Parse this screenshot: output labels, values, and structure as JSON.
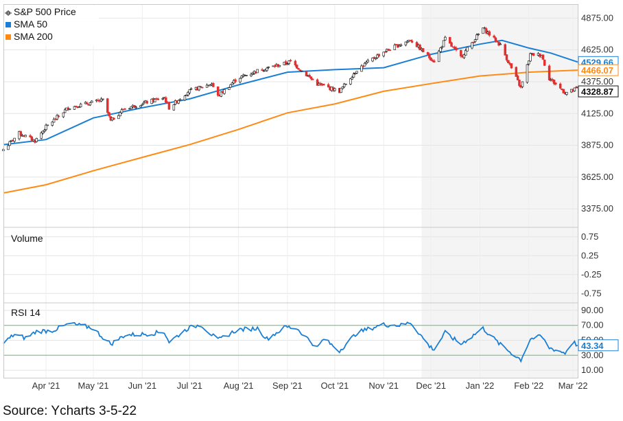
{
  "source_note": "Source: Ycharts 3-5-22",
  "colors": {
    "price_up": "#222222",
    "price_down": "#e03030",
    "sma50": "#1a7fd4",
    "sma200": "#ff8a14",
    "rsi": "#1a7fd4",
    "grid": "#e4e4e4",
    "threshold": "#6cbf6c"
  },
  "chart_data": [
    {
      "type": "candlestick",
      "panel": "price",
      "legend": [
        {
          "name": "S&P 500 Price",
          "icon": "candlestick-icon"
        },
        {
          "name": "SMA 50",
          "color": "#1a7fd4"
        },
        {
          "name": "SMA 200",
          "color": "#ff8a14"
        }
      ],
      "ylim": [
        3230,
        4985
      ],
      "yticks": [
        "4875.00",
        "4625.00",
        "4375.00",
        "4125.00",
        "3875.00",
        "3625.00",
        "3375.00"
      ],
      "xticks": [
        "Apr '21",
        "May '21",
        "Jun '21",
        "Jul '21",
        "Aug '21",
        "Sep '21",
        "Oct '21",
        "Nov '21",
        "Dec '21",
        "Jan '22",
        "Feb '22",
        "Mar '22"
      ],
      "x_range": [
        "2021-03-05",
        "2022-03-04"
      ],
      "last_values": {
        "sma50": "4529.66",
        "sma200": "4466.07",
        "price": "4328.87"
      },
      "price_anchors": [
        [
          "2021-03-05",
          3842
        ],
        [
          "2021-03-15",
          3970
        ],
        [
          "2021-03-25",
          3910
        ],
        [
          "2021-04-01",
          4020
        ],
        [
          "2021-04-15",
          4170
        ],
        [
          "2021-05-07",
          4230
        ],
        [
          "2021-05-12",
          4065
        ],
        [
          "2021-05-20",
          4160
        ],
        [
          "2021-06-01",
          4205
        ],
        [
          "2021-06-15",
          4250
        ],
        [
          "2021-06-18",
          4170
        ],
        [
          "2021-06-30",
          4297
        ],
        [
          "2021-07-15",
          4360
        ],
        [
          "2021-07-19",
          4260
        ],
        [
          "2021-07-31",
          4400
        ],
        [
          "2021-08-15",
          4470
        ],
        [
          "2021-08-31",
          4520
        ],
        [
          "2021-09-03",
          4535
        ],
        [
          "2021-09-20",
          4357
        ],
        [
          "2021-10-04",
          4300
        ],
        [
          "2021-10-15",
          4470
        ],
        [
          "2021-10-31",
          4605
        ],
        [
          "2021-11-18",
          4705
        ],
        [
          "2021-11-30",
          4567
        ],
        [
          "2021-12-03",
          4538
        ],
        [
          "2021-12-10",
          4712
        ],
        [
          "2021-12-20",
          4568
        ],
        [
          "2022-01-03",
          4796
        ],
        [
          "2022-01-14",
          4662
        ],
        [
          "2022-01-27",
          4326
        ],
        [
          "2022-02-02",
          4589
        ],
        [
          "2022-02-09",
          4587
        ],
        [
          "2022-02-14",
          4402
        ],
        [
          "2022-02-24",
          4288
        ],
        [
          "2022-03-01",
          4306
        ],
        [
          "2022-03-04",
          4329
        ]
      ],
      "series": [
        {
          "name": "SMA 50",
          "points": [
            [
              "2021-03-05",
              3880
            ],
            [
              "2021-04-01",
              3920
            ],
            [
              "2021-05-01",
              4090
            ],
            [
              "2021-06-01",
              4170
            ],
            [
              "2021-07-01",
              4240
            ],
            [
              "2021-08-01",
              4350
            ],
            [
              "2021-09-01",
              4450
            ],
            [
              "2021-10-01",
              4470
            ],
            [
              "2021-11-01",
              4485
            ],
            [
              "2021-12-01",
              4590
            ],
            [
              "2022-01-01",
              4670
            ],
            [
              "2022-01-15",
              4700
            ],
            [
              "2022-02-01",
              4640
            ],
            [
              "2022-02-15",
              4600
            ],
            [
              "2022-03-04",
              4530
            ]
          ]
        },
        {
          "name": "SMA 200",
          "points": [
            [
              "2021-03-05",
              3500
            ],
            [
              "2021-04-01",
              3565
            ],
            [
              "2021-05-01",
              3675
            ],
            [
              "2021-06-01",
              3780
            ],
            [
              "2021-07-01",
              3880
            ],
            [
              "2021-08-01",
              4000
            ],
            [
              "2021-09-01",
              4130
            ],
            [
              "2021-10-01",
              4200
            ],
            [
              "2021-11-01",
              4300
            ],
            [
              "2021-12-01",
              4360
            ],
            [
              "2022-01-01",
              4420
            ],
            [
              "2022-02-01",
              4450
            ],
            [
              "2022-03-04",
              4466
            ]
          ]
        }
      ]
    },
    {
      "type": "line",
      "panel": "volume",
      "title": "Volume",
      "ylim": [
        -1,
        1
      ],
      "yticks": [
        "0.75",
        "0.25",
        "-0.25",
        "-0.75"
      ],
      "series": []
    },
    {
      "type": "line",
      "panel": "rsi",
      "title": "RSI 14",
      "ylim": [
        0,
        100
      ],
      "yticks": [
        "90.00",
        "70.00",
        "50.00",
        "30.00",
        "10.00"
      ],
      "thresholds": [
        70,
        30
      ],
      "last_value": "43.34",
      "series": [
        {
          "name": "RSI 14",
          "points": [
            [
              "2021-03-05",
              46
            ],
            [
              "2021-03-12",
              58
            ],
            [
              "2021-03-19",
              53
            ],
            [
              "2021-03-26",
              62
            ],
            [
              "2021-04-05",
              63
            ],
            [
              "2021-04-16",
              72
            ],
            [
              "2021-04-30",
              67
            ],
            [
              "2021-05-12",
              45
            ],
            [
              "2021-05-21",
              57
            ],
            [
              "2021-06-01",
              58
            ],
            [
              "2021-06-15",
              61
            ],
            [
              "2021-06-18",
              48
            ],
            [
              "2021-06-30",
              66
            ],
            [
              "2021-07-08",
              71
            ],
            [
              "2021-07-19",
              50
            ],
            [
              "2021-07-31",
              64
            ],
            [
              "2021-08-13",
              66
            ],
            [
              "2021-08-19",
              52
            ],
            [
              "2021-08-31",
              68
            ],
            [
              "2021-09-07",
              66
            ],
            [
              "2021-09-20",
              40
            ],
            [
              "2021-09-24",
              52
            ],
            [
              "2021-10-04",
              36
            ],
            [
              "2021-10-15",
              60
            ],
            [
              "2021-10-31",
              71
            ],
            [
              "2021-11-12",
              70
            ],
            [
              "2021-11-18",
              74
            ],
            [
              "2021-11-30",
              42
            ],
            [
              "2021-12-03",
              38
            ],
            [
              "2021-12-10",
              60
            ],
            [
              "2021-12-20",
              45
            ],
            [
              "2022-01-03",
              66
            ],
            [
              "2022-01-14",
              44
            ],
            [
              "2022-01-27",
              24
            ],
            [
              "2022-02-02",
              52
            ],
            [
              "2022-02-09",
              55
            ],
            [
              "2022-02-14",
              40
            ],
            [
              "2022-02-24",
              33
            ],
            [
              "2022-03-01",
              48
            ],
            [
              "2022-03-04",
              43.34
            ]
          ]
        }
      ]
    }
  ]
}
